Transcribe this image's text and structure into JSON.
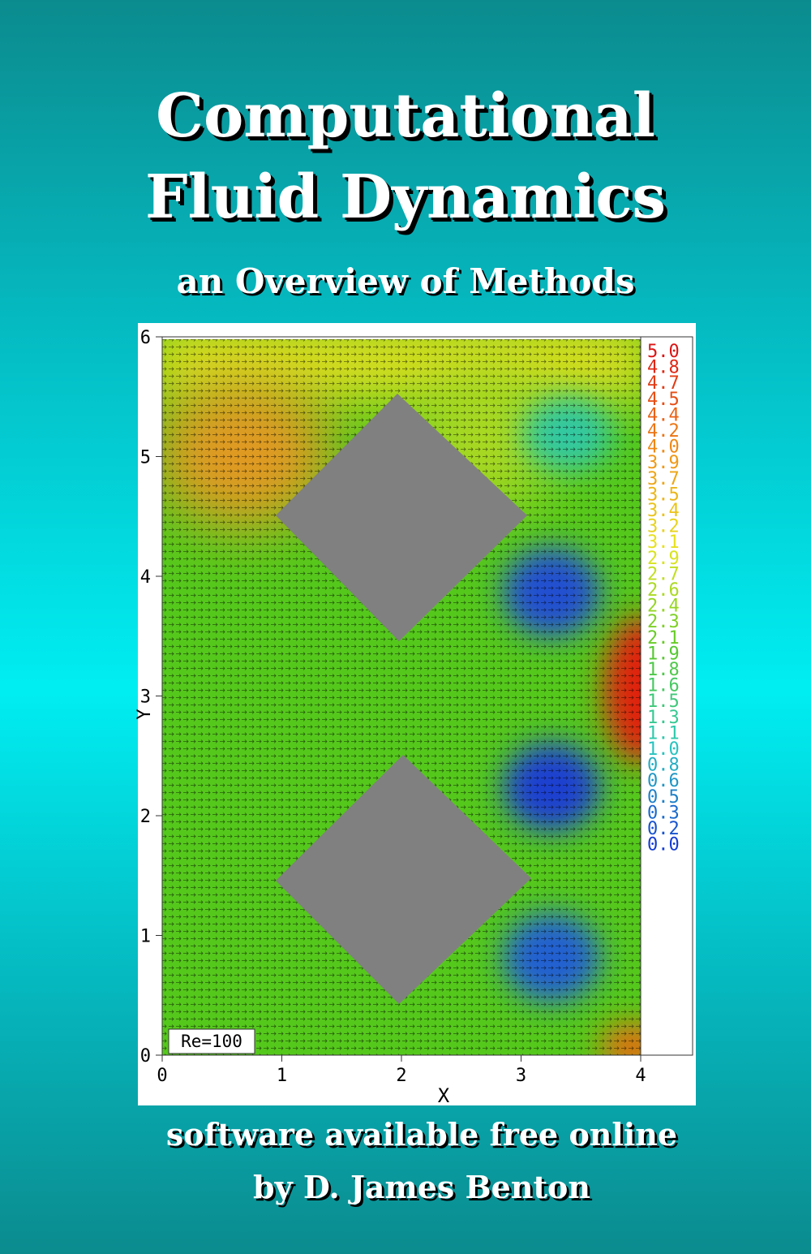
{
  "cover": {
    "title_lines": [
      "Computational",
      "Fluid Dynamics"
    ],
    "subtitle": "an Overview of Methods",
    "figure": {
      "x_tick_labels": [
        "0",
        "1",
        "2",
        "3",
        "4"
      ],
      "y_tick_labels": [
        "0",
        "1",
        "2",
        "3",
        "4",
        "5",
        "6"
      ],
      "x_label": "X",
      "y_label": "Y",
      "annotation": "Re=100",
      "colorbar_labels": [
        "5.0",
        "4.8",
        "4.7",
        "4.5",
        "4.4",
        "4.2",
        "4.0",
        "3.9",
        "3.7",
        "3.5",
        "3.4",
        "3.2",
        "3.1",
        "2.9",
        "2.7",
        "2.6",
        "2.4",
        "2.3",
        "2.1",
        "1.9",
        "1.8",
        "1.6",
        "1.5",
        "1.3",
        "1.1",
        "1.0",
        "0.8",
        "0.6",
        "0.5",
        "0.3",
        "0.2",
        "0.0"
      ]
    },
    "footer_lines": [
      "software available free online",
      "by D. James Benton"
    ]
  }
}
